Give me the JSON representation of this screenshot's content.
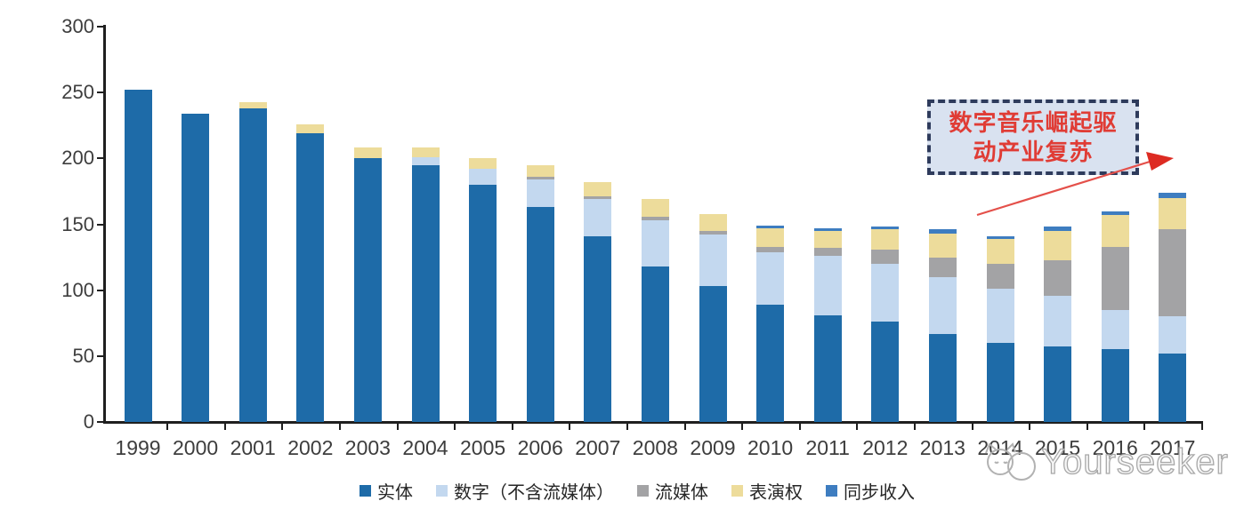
{
  "chart_data": {
    "type": "bar",
    "stacked": true,
    "title": "",
    "xlabel": "",
    "ylabel": "",
    "ylim": [
      0,
      300
    ],
    "y_ticks": [
      0,
      50,
      100,
      150,
      200,
      250,
      300
    ],
    "grid": false,
    "legend_position": "bottom",
    "categories": [
      "1999",
      "2000",
      "2001",
      "2002",
      "2003",
      "2004",
      "2005",
      "2006",
      "2007",
      "2008",
      "2009",
      "2010",
      "2011",
      "2012",
      "2013",
      "2014",
      "2015",
      "2016",
      "2017"
    ],
    "series": [
      {
        "name": "实体",
        "key": "physical",
        "color": "#1e6ba8",
        "values": [
          252,
          234,
          238,
          219,
          200,
          195,
          180,
          163,
          141,
          118,
          103,
          89,
          81,
          76,
          67,
          60,
          57,
          55,
          52
        ]
      },
      {
        "name": "数字（不含流媒体）",
        "key": "digital-excl-streaming",
        "color": "#c3d8ef",
        "values": [
          0,
          0,
          0,
          0,
          0,
          6,
          12,
          21,
          28,
          35,
          39,
          40,
          45,
          44,
          43,
          41,
          39,
          30,
          28
        ]
      },
      {
        "name": "流媒体",
        "key": "streaming",
        "color": "#a3a3a5",
        "values": [
          0,
          0,
          0,
          0,
          0,
          0,
          0,
          2,
          2,
          3,
          3,
          4,
          6,
          11,
          15,
          19,
          27,
          48,
          66
        ]
      },
      {
        "name": "表演权",
        "key": "performance-rights",
        "color": "#eddc9b",
        "values": [
          0,
          0,
          5,
          7,
          8,
          7,
          8,
          9,
          11,
          13,
          13,
          14,
          13,
          15,
          18,
          19,
          22,
          24,
          24
        ]
      },
      {
        "name": "同步收入",
        "key": "sync-revenue",
        "color": "#3e7dc0",
        "values": [
          0,
          0,
          0,
          0,
          0,
          0,
          0,
          0,
          0,
          0,
          0,
          2,
          2,
          2,
          3,
          2,
          3,
          3,
          4
        ]
      }
    ]
  },
  "annotation": {
    "line1": "数字音乐崛起驱",
    "line2": "动产业复苏",
    "text_color": "#e03c35",
    "box_fill": "#d9e2f0",
    "border_color": "#2e3b5c",
    "arrow_color": "#e4504a"
  },
  "watermark": {
    "text": "Yourseeker",
    "icon": "cat-face-icon",
    "color": "#a8a8a8"
  }
}
